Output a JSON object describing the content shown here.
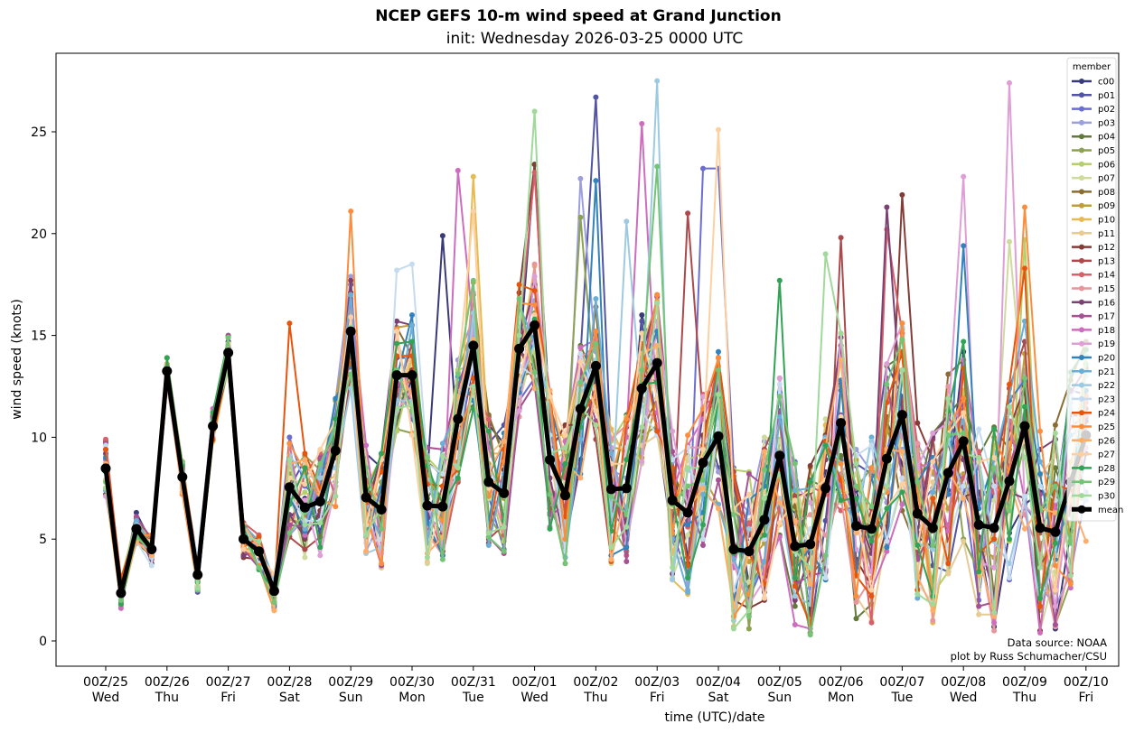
{
  "chart_data": {
    "type": "line",
    "title": "NCEP GEFS 10-m wind speed at Grand Junction",
    "subtitle": "init: Wednesday 2026-03-25 0000 UTC",
    "xlabel": "time (UTC)/date",
    "ylabel": "wind speed (knots)",
    "ylim": [
      -1.2,
      28.9
    ],
    "yticks": [
      0,
      5,
      10,
      15,
      20,
      25
    ],
    "x_step_hours": 6,
    "x_points": 65,
    "xticks": [
      {
        "l1": "00Z/25",
        "l2": "Wed"
      },
      {
        "l1": "00Z/26",
        "l2": "Thu"
      },
      {
        "l1": "00Z/27",
        "l2": "Fri"
      },
      {
        "l1": "00Z/28",
        "l2": "Sat"
      },
      {
        "l1": "00Z/29",
        "l2": "Sun"
      },
      {
        "l1": "00Z/30",
        "l2": "Mon"
      },
      {
        "l1": "00Z/31",
        "l2": "Tue"
      },
      {
        "l1": "00Z/01",
        "l2": "Wed"
      },
      {
        "l1": "00Z/02",
        "l2": "Thu"
      },
      {
        "l1": "00Z/03",
        "l2": "Fri"
      },
      {
        "l1": "00Z/04",
        "l2": "Sat"
      },
      {
        "l1": "00Z/05",
        "l2": "Sun"
      },
      {
        "l1": "00Z/06",
        "l2": "Mon"
      },
      {
        "l1": "00Z/07",
        "l2": "Tue"
      },
      {
        "l1": "00Z/08",
        "l2": "Wed"
      },
      {
        "l1": "00Z/09",
        "l2": "Thu"
      },
      {
        "l1": "00Z/10",
        "l2": "Fri"
      }
    ],
    "legend_title": "member",
    "legend_position": "top-right",
    "grid": false,
    "mean": {
      "name": "mean",
      "color": "#000000",
      "values": [
        8.47,
        2.35,
        5.5,
        4.5,
        13.25,
        8.05,
        3.25,
        10.55,
        14.15,
        5.0,
        4.4,
        2.45,
        7.55,
        6.55,
        6.85,
        9.35,
        15.2,
        7.05,
        6.45,
        13.05,
        13.05,
        6.65,
        6.6,
        10.9,
        14.5,
        7.8,
        7.25,
        14.35,
        15.5,
        8.9,
        7.15,
        11.4,
        13.5,
        7.45,
        7.5,
        12.4,
        13.65,
        6.9,
        6.3,
        8.75,
        10.05,
        4.5,
        4.4,
        5.95,
        9.1,
        4.65,
        4.75,
        7.5,
        10.7,
        5.65,
        5.5,
        8.95,
        11.1,
        6.25,
        5.55,
        8.25,
        9.8,
        5.7,
        5.55,
        7.85,
        10.55,
        5.55,
        5.35,
        7.8,
        10.1
      ]
    },
    "members": [
      {
        "name": "c00",
        "color": "#393b79",
        "peaks": {
          "22": 19.9,
          "28": 23.4
        }
      },
      {
        "name": "p01",
        "color": "#5254a3",
        "peaks": {
          "32": 26.7
        }
      },
      {
        "name": "p02",
        "color": "#6b6ecf",
        "peaks": {
          "40": 23.2,
          "39": 23.2
        }
      },
      {
        "name": "p03",
        "color": "#9c9ede",
        "peaks": {
          "31": 22.7
        }
      },
      {
        "name": "p04",
        "color": "#637939",
        "peaks": {}
      },
      {
        "name": "p05",
        "color": "#8ca252",
        "peaks": {
          "31": 20.8
        }
      },
      {
        "name": "p06",
        "color": "#b5cf6b",
        "peaks": {
          "60": 19.7
        }
      },
      {
        "name": "p07",
        "color": "#cedb9c",
        "peaks": {
          "59": 19.6
        }
      },
      {
        "name": "p08",
        "color": "#8c6d31",
        "peaks": {}
      },
      {
        "name": "p09",
        "color": "#bd9e39",
        "peaks": {}
      },
      {
        "name": "p10",
        "color": "#e7ba52",
        "peaks": {
          "24": 22.8
        }
      },
      {
        "name": "p11",
        "color": "#e7cb94",
        "peaks": {}
      },
      {
        "name": "p12",
        "color": "#843c39",
        "peaks": {
          "28": 23.4,
          "52": 21.9
        }
      },
      {
        "name": "p13",
        "color": "#ad494a",
        "peaks": {
          "38": 21.0,
          "48": 19.8
        }
      },
      {
        "name": "p14",
        "color": "#d6616b",
        "peaks": {
          "28": 23.0,
          "51": 20.2
        }
      },
      {
        "name": "p15",
        "color": "#e7969c",
        "peaks": {}
      },
      {
        "name": "p16",
        "color": "#7b4173",
        "peaks": {
          "51": 21.3
        }
      },
      {
        "name": "p17",
        "color": "#a55194",
        "peaks": {}
      },
      {
        "name": "p18",
        "color": "#ce6dbd",
        "peaks": {
          "23": 23.1,
          "35": 25.4
        }
      },
      {
        "name": "p19",
        "color": "#de9ed6",
        "peaks": {
          "56": 22.8,
          "59": 27.4
        }
      },
      {
        "name": "p20",
        "color": "#3182bd",
        "peaks": {
          "32": 22.6,
          "56": 19.4
        }
      },
      {
        "name": "p21",
        "color": "#6baed6",
        "peaks": {}
      },
      {
        "name": "p22",
        "color": "#9ecae1",
        "peaks": {
          "36": 27.5,
          "34": 20.6
        }
      },
      {
        "name": "p23",
        "color": "#c6dbef",
        "peaks": {
          "19": 18.2,
          "20": 18.5
        }
      },
      {
        "name": "p24",
        "color": "#e6550d",
        "peaks": {
          "12": 15.6,
          "60": 18.3
        }
      },
      {
        "name": "p25",
        "color": "#fd8d3c",
        "peaks": {
          "16": 21.1,
          "60": 21.3
        }
      },
      {
        "name": "p26",
        "color": "#fdae6b",
        "peaks": {}
      },
      {
        "name": "p27",
        "color": "#fdd0a2",
        "peaks": {
          "24": 21.1,
          "40": 25.1
        }
      },
      {
        "name": "p28",
        "color": "#31a354",
        "peaks": {
          "44": 17.7
        }
      },
      {
        "name": "p29",
        "color": "#74c476",
        "peaks": {
          "36": 23.3
        }
      },
      {
        "name": "p30",
        "color": "#a1d99b",
        "peaks": {
          "28": 26.0,
          "47": 19.0
        }
      }
    ],
    "annotations": [
      "Data source: NOAA",
      "plot by Russ Schumacher/CSU"
    ]
  }
}
